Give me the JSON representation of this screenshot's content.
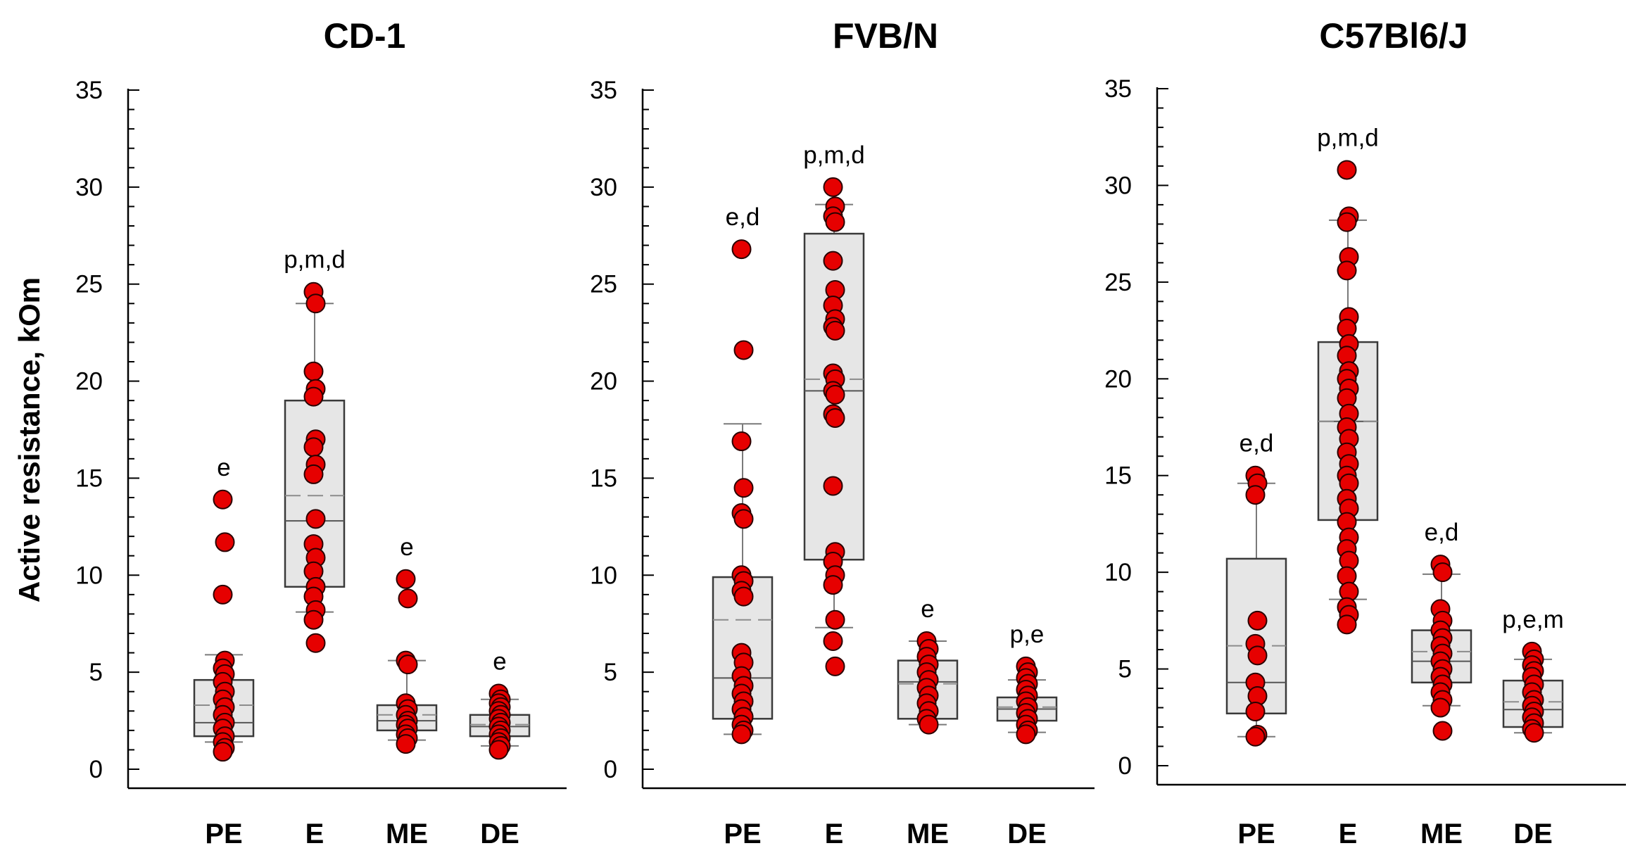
{
  "colors": {
    "point_fill": "#e60000",
    "point_stroke": "#2a0000",
    "box_fill": "#e6e6e6",
    "box_stroke": "#3a3a3a",
    "median_line": "#555555",
    "mean_line": "#8c8c8c",
    "whisker": "#7a7a7a",
    "axis": "#000000"
  },
  "chart_data": {
    "type": "box-scatter",
    "ylabel": "Active resistance, kOm",
    "ylim": [
      0,
      35
    ],
    "yticks": [
      0,
      5,
      10,
      15,
      20,
      25,
      30,
      35
    ],
    "categories": [
      "PE",
      "E",
      "ME",
      "DE"
    ],
    "panels": [
      {
        "title": "CD-1",
        "groups": [
          {
            "category": "PE",
            "annotation": "e",
            "q1": 1.7,
            "median": 2.4,
            "q3": 4.6,
            "mean": 3.3,
            "whisker_low": 1.4,
            "whisker_high": 5.9,
            "points": [
              13.9,
              11.7,
              9.0,
              5.6,
              5.2,
              4.9,
              4.5,
              4.0,
              3.6,
              3.2,
              2.8,
              2.4,
              2.1,
              1.7,
              1.4,
              1.1,
              0.9
            ]
          },
          {
            "category": "E",
            "annotation": "p,m,d",
            "q1": 9.4,
            "median": 12.8,
            "q3": 19.0,
            "mean": 14.1,
            "whisker_low": 8.1,
            "whisker_high": 24.0,
            "points": [
              24.6,
              24.0,
              20.5,
              19.6,
              19.2,
              17.0,
              16.6,
              15.7,
              15.2,
              12.9,
              11.6,
              10.9,
              10.2,
              9.4,
              8.9,
              8.2,
              7.7,
              6.5
            ]
          },
          {
            "category": "ME",
            "annotation": "e",
            "q1": 2.0,
            "median": 2.5,
            "q3": 3.3,
            "mean": 2.8,
            "whisker_low": 1.5,
            "whisker_high": 5.6,
            "points": [
              9.8,
              8.8,
              5.6,
              5.4,
              3.4,
              3.1,
              2.8,
              2.5,
              2.3,
              2.1,
              1.8,
              1.6,
              1.3
            ]
          },
          {
            "category": "DE",
            "annotation": "e",
            "q1": 1.7,
            "median": 2.2,
            "q3": 2.8,
            "mean": 2.3,
            "whisker_low": 1.2,
            "whisker_high": 3.6,
            "points": [
              3.9,
              3.6,
              3.4,
              3.2,
              3.0,
              2.8,
              2.6,
              2.4,
              2.2,
              2.0,
              1.8,
              1.6,
              1.4,
              1.2,
              1.0
            ]
          }
        ]
      },
      {
        "title": "FVB/N",
        "groups": [
          {
            "category": "PE",
            "annotation": "e,d",
            "q1": 2.6,
            "median": 4.7,
            "q3": 9.9,
            "mean": 7.7,
            "whisker_low": 1.8,
            "whisker_high": 17.8,
            "points": [
              26.8,
              21.6,
              16.9,
              14.5,
              13.2,
              12.9,
              10.0,
              9.7,
              9.2,
              8.9,
              6.0,
              5.5,
              4.8,
              4.3,
              3.9,
              3.5,
              3.1,
              2.7,
              2.3,
              2.0,
              1.8
            ]
          },
          {
            "category": "E",
            "annotation": "p,m,d",
            "q1": 10.8,
            "median": 19.5,
            "q3": 27.6,
            "mean": 20.1,
            "whisker_low": 7.3,
            "whisker_high": 29.1,
            "points": [
              30.0,
              29.0,
              28.5,
              28.2,
              26.2,
              24.7,
              23.9,
              23.2,
              22.8,
              22.6,
              20.4,
              20.1,
              19.5,
              19.3,
              18.3,
              18.1,
              14.6,
              11.2,
              10.7,
              10.0,
              9.5,
              7.7,
              6.6,
              5.3
            ]
          },
          {
            "category": "ME",
            "annotation": "e",
            "q1": 2.6,
            "median": 4.5,
            "q3": 5.6,
            "mean": 4.4,
            "whisker_low": 2.3,
            "whisker_high": 6.6,
            "points": [
              6.6,
              6.2,
              5.8,
              5.4,
              5.0,
              4.6,
              4.2,
              3.8,
              3.4,
              3.0,
              2.6,
              2.3
            ]
          },
          {
            "category": "DE",
            "annotation": "p,e",
            "q1": 2.5,
            "median": 3.1,
            "q3": 3.7,
            "mean": 3.2,
            "whisker_low": 1.9,
            "whisker_high": 4.6,
            "points": [
              5.3,
              5.0,
              4.7,
              4.4,
              4.1,
              3.8,
              3.5,
              3.2,
              2.9,
              2.6,
              2.3,
              2.0,
              1.8
            ]
          }
        ]
      },
      {
        "title": "C57Bl6/J",
        "groups": [
          {
            "category": "PE",
            "annotation": "e,d",
            "q1": 2.7,
            "median": 4.3,
            "q3": 10.7,
            "mean": 6.2,
            "whisker_low": 1.5,
            "whisker_high": 14.6,
            "points": [
              15.0,
              14.6,
              14.0,
              7.5,
              6.3,
              5.7,
              4.3,
              3.6,
              2.8,
              1.6,
              1.5
            ]
          },
          {
            "category": "E",
            "annotation": "p,m,d",
            "q1": 12.7,
            "median": 17.8,
            "q3": 21.9,
            "mean": 17.8,
            "whisker_low": 8.6,
            "whisker_high": 28.2,
            "points": [
              30.8,
              28.4,
              28.1,
              26.3,
              25.6,
              23.2,
              22.6,
              21.8,
              21.2,
              20.4,
              20.0,
              19.5,
              19.0,
              18.2,
              17.5,
              16.9,
              16.2,
              15.6,
              15.0,
              14.6,
              13.8,
              13.3,
              12.6,
              11.8,
              11.2,
              10.6,
              9.8,
              9.0,
              8.2,
              7.8,
              7.3
            ]
          },
          {
            "category": "ME",
            "annotation": "e,d",
            "q1": 4.3,
            "median": 5.4,
            "q3": 7.0,
            "mean": 5.9,
            "whisker_low": 3.1,
            "whisker_high": 9.9,
            "points": [
              10.4,
              10.0,
              8.1,
              7.5,
              7.0,
              6.6,
              6.2,
              5.8,
              5.4,
              5.0,
              4.6,
              4.2,
              3.8,
              3.4,
              3.0,
              1.8
            ]
          },
          {
            "category": "DE",
            "annotation": "p,e,m",
            "q1": 2.0,
            "median": 2.9,
            "q3": 4.4,
            "mean": 3.3,
            "whisker_low": 1.7,
            "whisker_high": 5.5,
            "points": [
              5.9,
              5.5,
              5.2,
              4.9,
              4.6,
              4.2,
              3.8,
              3.4,
              3.1,
              2.8,
              2.5,
              2.2,
              1.9,
              1.7
            ]
          }
        ]
      }
    ]
  }
}
